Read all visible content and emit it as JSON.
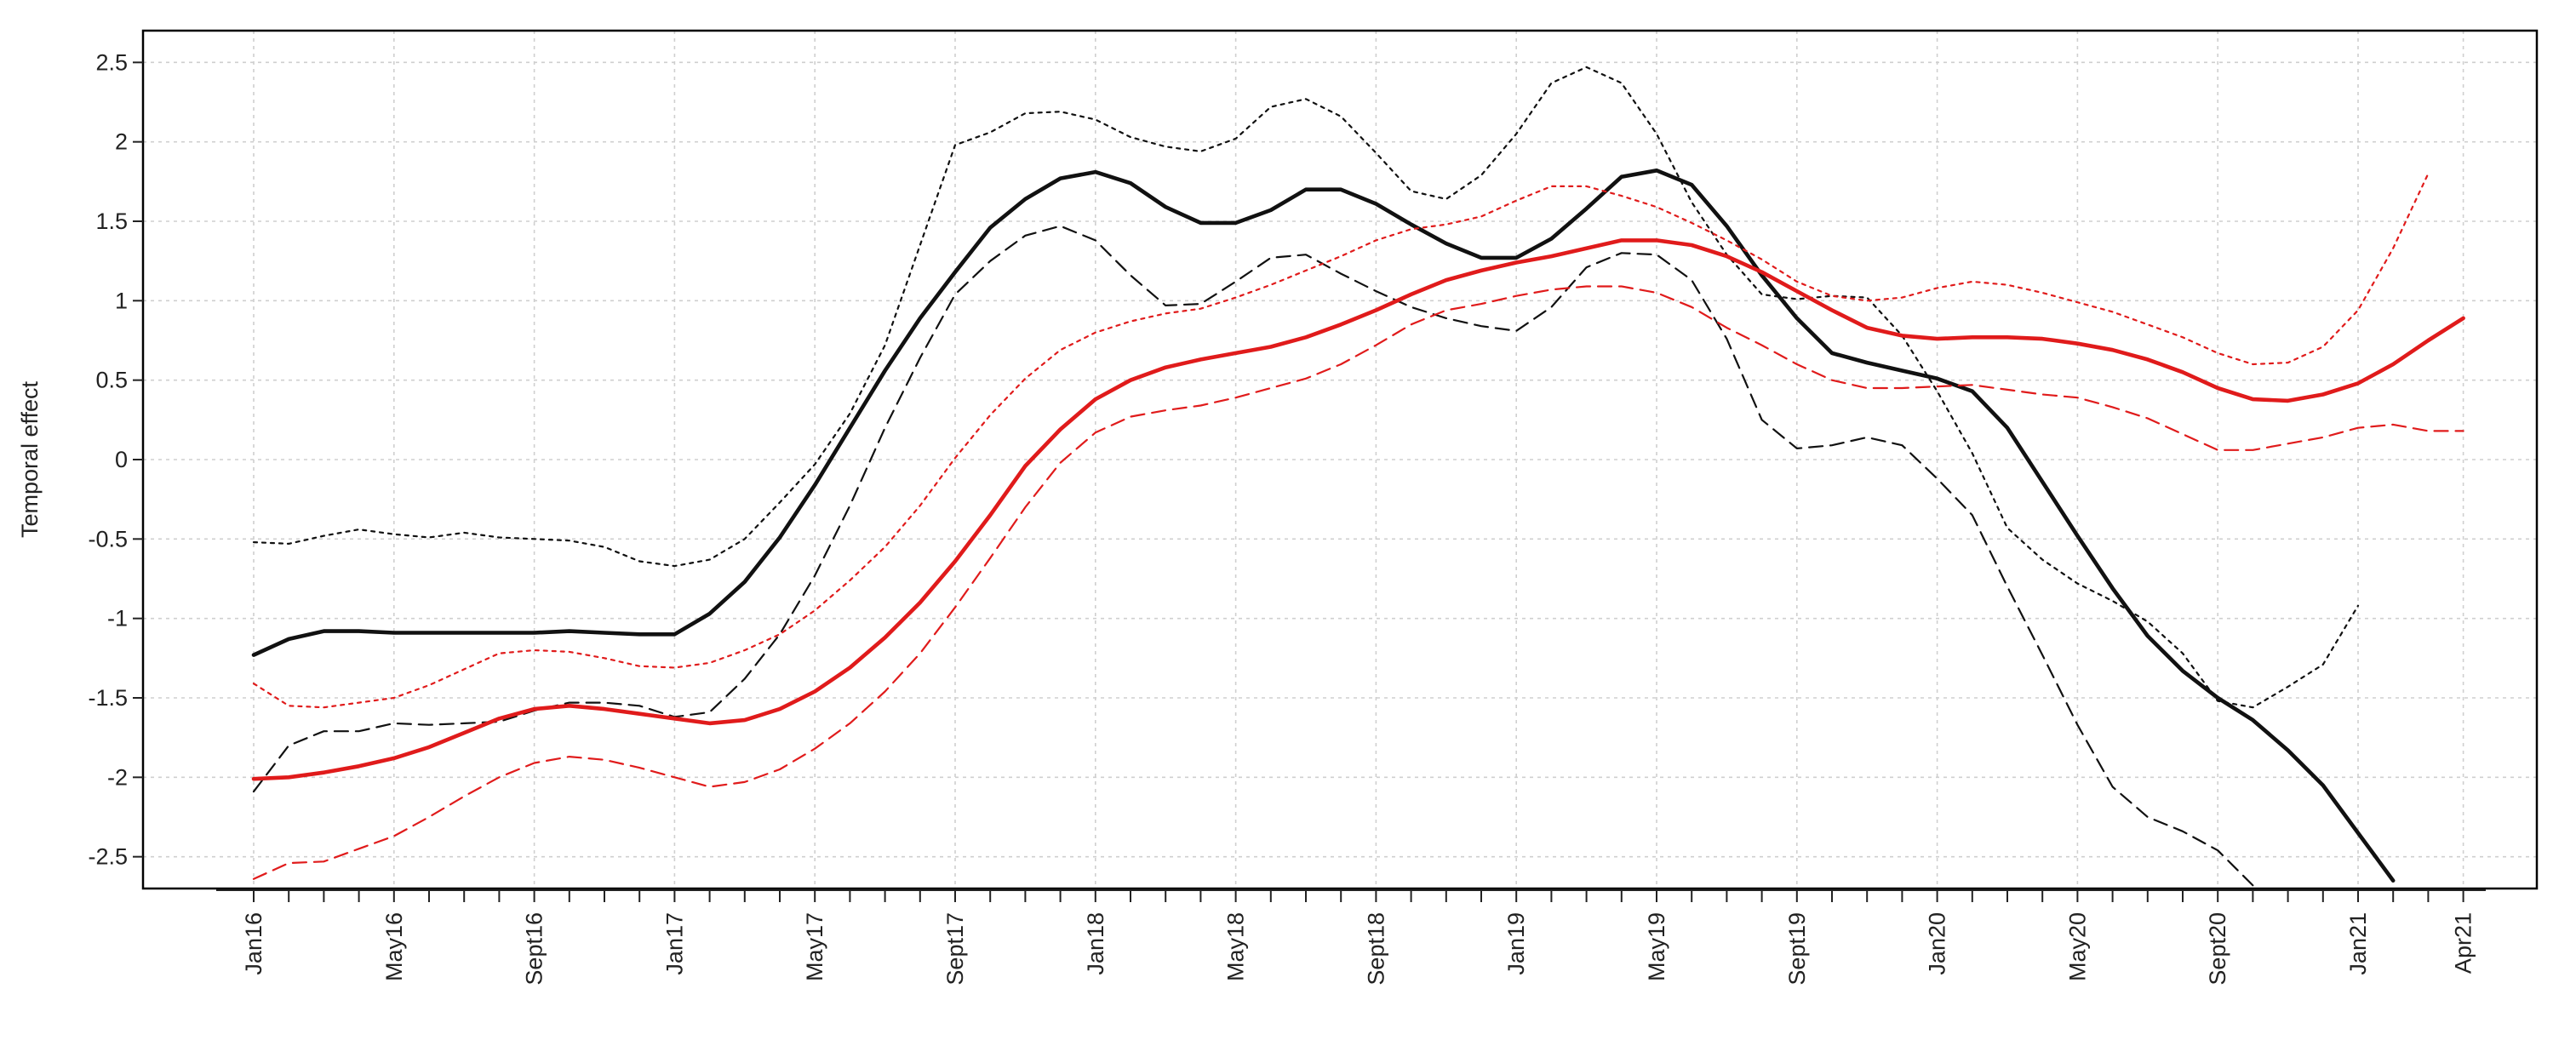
{
  "chart_data": {
    "type": "line",
    "title": "",
    "xlabel": "",
    "ylabel": "Temporal effect",
    "ylim": [
      -2.7,
      2.7
    ],
    "grid": true,
    "legend": "none",
    "yticks": [
      2.5,
      2,
      1.5,
      1,
      0.5,
      0,
      -0.5,
      -1,
      -1.5,
      -2,
      -2.5
    ],
    "ytick_labels": [
      "2.5",
      "2",
      "1.5",
      "1",
      "0.5",
      "0",
      "-0.5",
      "-1",
      "-1.5",
      "-2",
      "-2.5"
    ],
    "x_months": [
      "Jan16",
      "Feb16",
      "Mar16",
      "Apr16",
      "May16",
      "Jun16",
      "Jul16",
      "Aug16",
      "Sept16",
      "Oct16",
      "Nov16",
      "Dec16",
      "Jan17",
      "Feb17",
      "Mar17",
      "Apr17",
      "May17",
      "Jun17",
      "Jul17",
      "Aug17",
      "Sept17",
      "Oct17",
      "Nov17",
      "Dec17",
      "Jan18",
      "Feb18",
      "Mar18",
      "Apr18",
      "May18",
      "Jun18",
      "Jul18",
      "Aug18",
      "Sept18",
      "Oct18",
      "Nov18",
      "Dec18",
      "Jan19",
      "Feb19",
      "Mar19",
      "Apr19",
      "May19",
      "Jun19",
      "Jul19",
      "Aug19",
      "Sept19",
      "Oct19",
      "Nov19",
      "Dec19",
      "Jan20",
      "Feb20",
      "Mar20",
      "Apr20",
      "May20",
      "Jun20",
      "Jul20",
      "Aug20",
      "Sept20",
      "Oct20",
      "Nov20",
      "Dec20",
      "Jan21",
      "Feb21",
      "Mar21",
      "Apr21"
    ],
    "x_tick_label_months": [
      "Jan16",
      "May16",
      "Sept16",
      "Jan17",
      "May17",
      "Sept17",
      "Jan18",
      "May18",
      "Sept18",
      "Jan19",
      "May19",
      "Sept19",
      "Jan20",
      "May20",
      "Sept20",
      "Jan21",
      "Apr21"
    ],
    "series": [
      {
        "name": "black estimate",
        "color": "#111111",
        "style": "solid",
        "values": [
          -1.23,
          -1.13,
          -1.08,
          -1.08,
          -1.09,
          -1.09,
          -1.09,
          -1.09,
          -1.09,
          -1.08,
          -1.09,
          -1.1,
          -1.1,
          -0.97,
          -0.77,
          -0.49,
          -0.16,
          0.2,
          0.56,
          0.89,
          1.18,
          1.46,
          1.64,
          1.77,
          1.81,
          1.74,
          1.59,
          1.49,
          1.49,
          1.57,
          1.7,
          1.7,
          1.61,
          1.48,
          1.36,
          1.27,
          1.27,
          1.39,
          1.58,
          1.78,
          1.82,
          1.73,
          1.47,
          1.16,
          0.89,
          0.67,
          0.61,
          0.56,
          0.51,
          0.43,
          0.2,
          -0.14,
          -0.48,
          -0.81,
          -1.11,
          -1.33,
          -1.5,
          -1.64,
          -1.83,
          -2.05,
          -2.35,
          -2.65
        ]
      },
      {
        "name": "black upper bound",
        "color": "#111111",
        "style": "dotted",
        "values": [
          -0.52,
          -0.53,
          -0.48,
          -0.44,
          -0.47,
          -0.49,
          -0.46,
          -0.49,
          -0.5,
          -0.51,
          -0.55,
          -0.64,
          -0.67,
          -0.63,
          -0.5,
          -0.27,
          -0.03,
          0.29,
          0.72,
          1.35,
          1.98,
          2.06,
          2.18,
          2.19,
          2.14,
          2.03,
          1.97,
          1.94,
          2.02,
          2.22,
          2.27,
          2.16,
          1.93,
          1.69,
          1.64,
          1.79,
          2.05,
          2.37,
          2.47,
          2.37,
          2.05,
          1.62,
          1.29,
          1.04,
          1.01,
          1.03,
          1.02,
          0.78,
          0.43,
          0.04,
          -0.43,
          -0.63,
          -0.78,
          -0.89,
          -1.02,
          -1.22,
          -1.52,
          -1.56,
          -1.43,
          -1.29,
          -0.92
        ]
      },
      {
        "name": "black lower bound",
        "color": "#111111",
        "style": "dashed",
        "values": [
          -2.09,
          -1.8,
          -1.71,
          -1.71,
          -1.66,
          -1.67,
          -1.66,
          -1.65,
          -1.58,
          -1.53,
          -1.53,
          -1.55,
          -1.62,
          -1.59,
          -1.38,
          -1.1,
          -0.73,
          -0.29,
          0.2,
          0.64,
          1.04,
          1.25,
          1.41,
          1.47,
          1.38,
          1.16,
          0.97,
          0.98,
          1.12,
          1.27,
          1.29,
          1.17,
          1.06,
          0.96,
          0.89,
          0.84,
          0.81,
          0.96,
          1.21,
          1.3,
          1.29,
          1.13,
          0.76,
          0.25,
          0.07,
          0.09,
          0.14,
          0.09,
          -0.12,
          -0.35,
          -0.8,
          -1.23,
          -1.67,
          -2.06,
          -2.25,
          -2.34,
          -2.46,
          -2.68
        ]
      },
      {
        "name": "red estimate",
        "color": "#e01b1b",
        "style": "solid",
        "values": [
          -2.01,
          -2.0,
          -1.97,
          -1.93,
          -1.88,
          -1.81,
          -1.72,
          -1.63,
          -1.57,
          -1.55,
          -1.57,
          -1.6,
          -1.63,
          -1.66,
          -1.64,
          -1.57,
          -1.46,
          -1.31,
          -1.12,
          -0.9,
          -0.64,
          -0.35,
          -0.04,
          0.19,
          0.38,
          0.5,
          0.58,
          0.63,
          0.67,
          0.71,
          0.77,
          0.85,
          0.94,
          1.04,
          1.13,
          1.19,
          1.24,
          1.28,
          1.33,
          1.38,
          1.38,
          1.35,
          1.28,
          1.18,
          1.06,
          0.94,
          0.83,
          0.78,
          0.76,
          0.77,
          0.77,
          0.76,
          0.73,
          0.69,
          0.63,
          0.55,
          0.45,
          0.38,
          0.37,
          0.41,
          0.48,
          0.6,
          0.75,
          0.89
        ]
      },
      {
        "name": "red upper bound",
        "color": "#e01b1b",
        "style": "dotted",
        "values": [
          -1.41,
          -1.55,
          -1.56,
          -1.53,
          -1.5,
          -1.42,
          -1.32,
          -1.22,
          -1.2,
          -1.21,
          -1.25,
          -1.3,
          -1.31,
          -1.28,
          -1.2,
          -1.1,
          -0.95,
          -0.76,
          -0.55,
          -0.29,
          0.01,
          0.28,
          0.51,
          0.69,
          0.8,
          0.87,
          0.92,
          0.95,
          1.02,
          1.1,
          1.19,
          1.28,
          1.38,
          1.45,
          1.48,
          1.53,
          1.63,
          1.72,
          1.72,
          1.66,
          1.59,
          1.49,
          1.38,
          1.26,
          1.12,
          1.03,
          1.0,
          1.02,
          1.08,
          1.12,
          1.1,
          1.05,
          0.99,
          0.93,
          0.85,
          0.77,
          0.67,
          0.6,
          0.61,
          0.71,
          0.94,
          1.33,
          1.8
        ]
      },
      {
        "name": "red lower bound",
        "color": "#e01b1b",
        "style": "dashed",
        "values": [
          -2.64,
          -2.54,
          -2.53,
          -2.45,
          -2.37,
          -2.25,
          -2.12,
          -2.0,
          -1.91,
          -1.87,
          -1.89,
          -1.94,
          -2.0,
          -2.06,
          -2.03,
          -1.95,
          -1.82,
          -1.66,
          -1.46,
          -1.22,
          -0.93,
          -0.62,
          -0.3,
          -0.02,
          0.17,
          0.27,
          0.31,
          0.34,
          0.39,
          0.45,
          0.51,
          0.6,
          0.72,
          0.85,
          0.94,
          0.98,
          1.03,
          1.07,
          1.09,
          1.09,
          1.05,
          0.96,
          0.83,
          0.72,
          0.6,
          0.5,
          0.45,
          0.45,
          0.46,
          0.47,
          0.44,
          0.41,
          0.39,
          0.33,
          0.26,
          0.16,
          0.06,
          0.06,
          0.1,
          0.14,
          0.2,
          0.22,
          0.18,
          0.18
        ]
      }
    ]
  }
}
